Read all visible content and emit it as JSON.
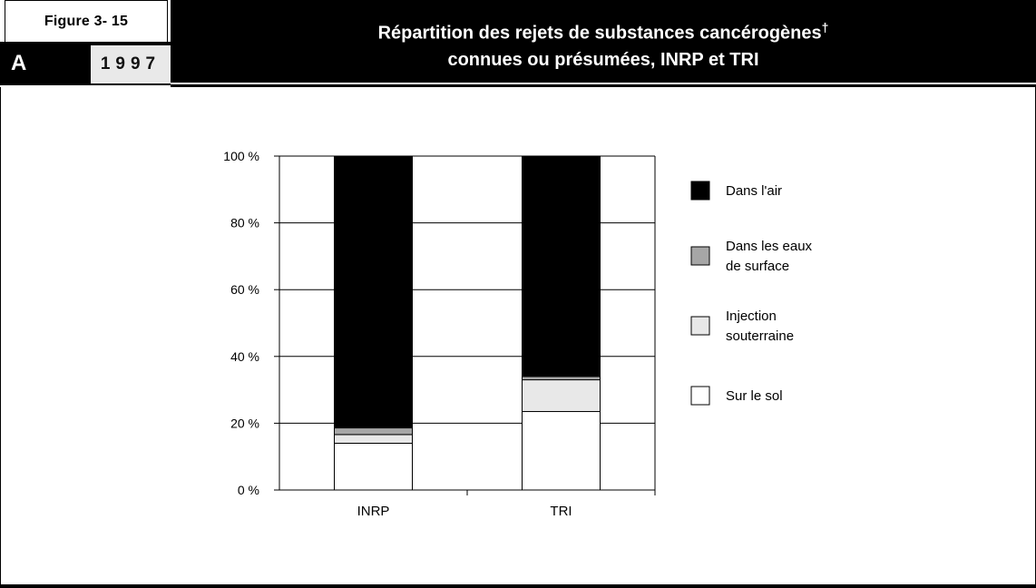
{
  "header": {
    "figure_label": "Figure 3- 15",
    "letter": "A",
    "year": "1997",
    "title_line1": "Répartition des rejets de substances cancérogènes",
    "title_dagger": "†",
    "title_line2": "connues ou présumées, INRP et TRI"
  },
  "chart_data": {
    "type": "bar",
    "stacked": true,
    "categories": [
      "INRP",
      "TRI"
    ],
    "ylim": [
      0,
      100
    ],
    "ytick_labels": [
      "0 %",
      "20 %",
      "40 %",
      "60 %",
      "80 %",
      "100 %"
    ],
    "grid": true,
    "legend_position": "right",
    "series": [
      {
        "name": "Sur le sol",
        "color": "#ffffff",
        "values": [
          14,
          23.5
        ]
      },
      {
        "name": "Injection souterraine",
        "color": "#e8e8e8",
        "values": [
          2.6,
          9.5
        ]
      },
      {
        "name": "Dans les eaux de surface",
        "color": "#a6a6a6",
        "values": [
          2.0,
          1.0
        ]
      },
      {
        "name": "Dans l'air",
        "color": "#000000",
        "values": [
          81.4,
          66.0
        ]
      }
    ],
    "legend_lines": [
      [
        "Dans l'air"
      ],
      [
        "Dans les eaux",
        "de surface"
      ],
      [
        "Injection",
        "souterraine"
      ],
      [
        "Sur le sol"
      ]
    ]
  }
}
